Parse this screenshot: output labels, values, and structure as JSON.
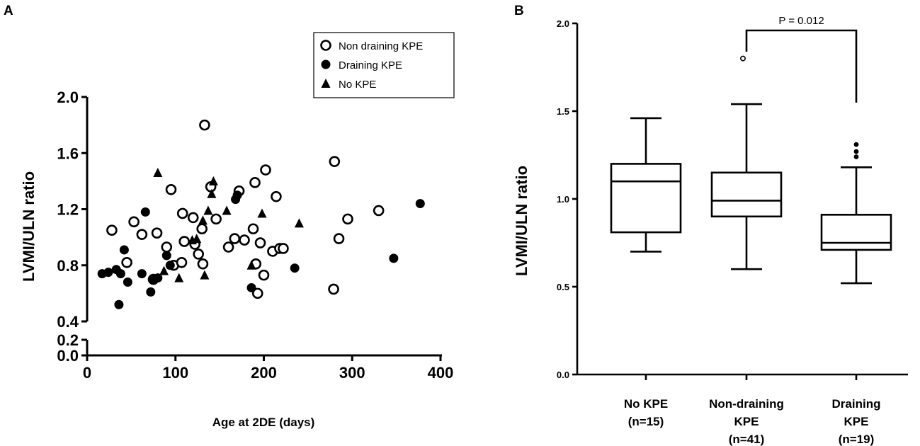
{
  "panels": {
    "a": "A",
    "b": "B"
  },
  "chart_data": [
    {
      "type": "scatter",
      "xlabel": "Age at 2DE (days)",
      "ylabel": "LVMI/ULN ratio",
      "xlim": [
        0,
        400
      ],
      "xticks": [
        "0",
        "100",
        "200",
        "300",
        "400"
      ],
      "ylim": [
        0,
        2.0
      ],
      "y_axis_break": [
        0.2,
        0.4
      ],
      "yticks": [
        "0.0",
        "0.2",
        "0.4",
        "0.8",
        "1.2",
        "1.6",
        "2.0"
      ],
      "legend_position": "top-right",
      "grid": false,
      "series": [
        {
          "name": "Non draining KPE",
          "marker": "open-circle",
          "x": [
            28,
            45,
            53,
            62,
            75,
            79,
            90,
            95,
            98,
            107,
            108,
            110,
            120,
            122,
            126,
            130,
            131,
            133,
            140,
            146,
            160,
            167,
            172,
            178,
            188,
            190,
            191,
            193,
            196,
            200,
            202,
            210,
            214,
            218,
            222,
            280,
            285,
            279,
            295,
            330
          ],
          "y": [
            1.05,
            0.82,
            1.11,
            1.02,
            0.7,
            1.03,
            0.93,
            1.34,
            0.8,
            0.82,
            1.17,
            0.97,
            1.14,
            0.95,
            0.88,
            1.06,
            0.81,
            1.8,
            1.36,
            1.13,
            0.93,
            0.99,
            1.33,
            0.98,
            1.06,
            1.39,
            0.81,
            0.6,
            0.96,
            0.73,
            1.48,
            0.9,
            1.29,
            0.92,
            0.92,
            1.54,
            0.99,
            0.63,
            1.13,
            1.19
          ]
        },
        {
          "name": "Draining KPE",
          "marker": "filled-circle",
          "x": [
            17,
            24,
            33,
            36,
            38,
            42,
            46,
            62,
            66,
            72,
            74,
            80,
            90,
            94,
            168,
            170,
            186,
            235,
            347,
            377
          ],
          "y": [
            0.74,
            0.75,
            0.77,
            0.52,
            0.74,
            0.91,
            0.68,
            0.74,
            1.18,
            0.61,
            0.7,
            0.71,
            0.87,
            0.8,
            1.27,
            1.3,
            0.64,
            0.78,
            0.85,
            1.24
          ]
        },
        {
          "name": "No KPE",
          "marker": "filled-triangle",
          "x": [
            80,
            87,
            104,
            119,
            124,
            131,
            133,
            137,
            141,
            143,
            158,
            186,
            198,
            240
          ],
          "y": [
            1.46,
            0.76,
            0.71,
            0.98,
            0.99,
            1.12,
            0.73,
            1.19,
            1.31,
            1.4,
            1.19,
            0.8,
            1.17,
            1.1
          ]
        }
      ]
    },
    {
      "type": "box",
      "ylabel": "LVMI/ULN ratio",
      "ylim": [
        0,
        2.0
      ],
      "yticks": [
        "0.0",
        "0.5",
        "1.0",
        "1.5",
        "2.0"
      ],
      "categories": [
        [
          "No KPE",
          "(n=15)"
        ],
        [
          "Non-draining",
          "KPE",
          "(n=41)"
        ],
        [
          "Draining",
          "KPE",
          "(n=19)"
        ]
      ],
      "boxes": [
        {
          "min": 0.7,
          "q1": 0.81,
          "median": 1.1,
          "q3": 1.2,
          "max": 1.46,
          "outliers": []
        },
        {
          "min": 0.6,
          "q1": 0.9,
          "median": 0.99,
          "q3": 1.15,
          "max": 1.54,
          "outliers": [
            1.8
          ]
        },
        {
          "min": 0.52,
          "q1": 0.71,
          "median": 0.75,
          "q3": 0.91,
          "max": 1.18,
          "outliers": [
            1.24,
            1.27,
            1.31
          ]
        }
      ],
      "annotation": {
        "text": "P = 0.012",
        "between": [
          1,
          2
        ]
      }
    }
  ]
}
